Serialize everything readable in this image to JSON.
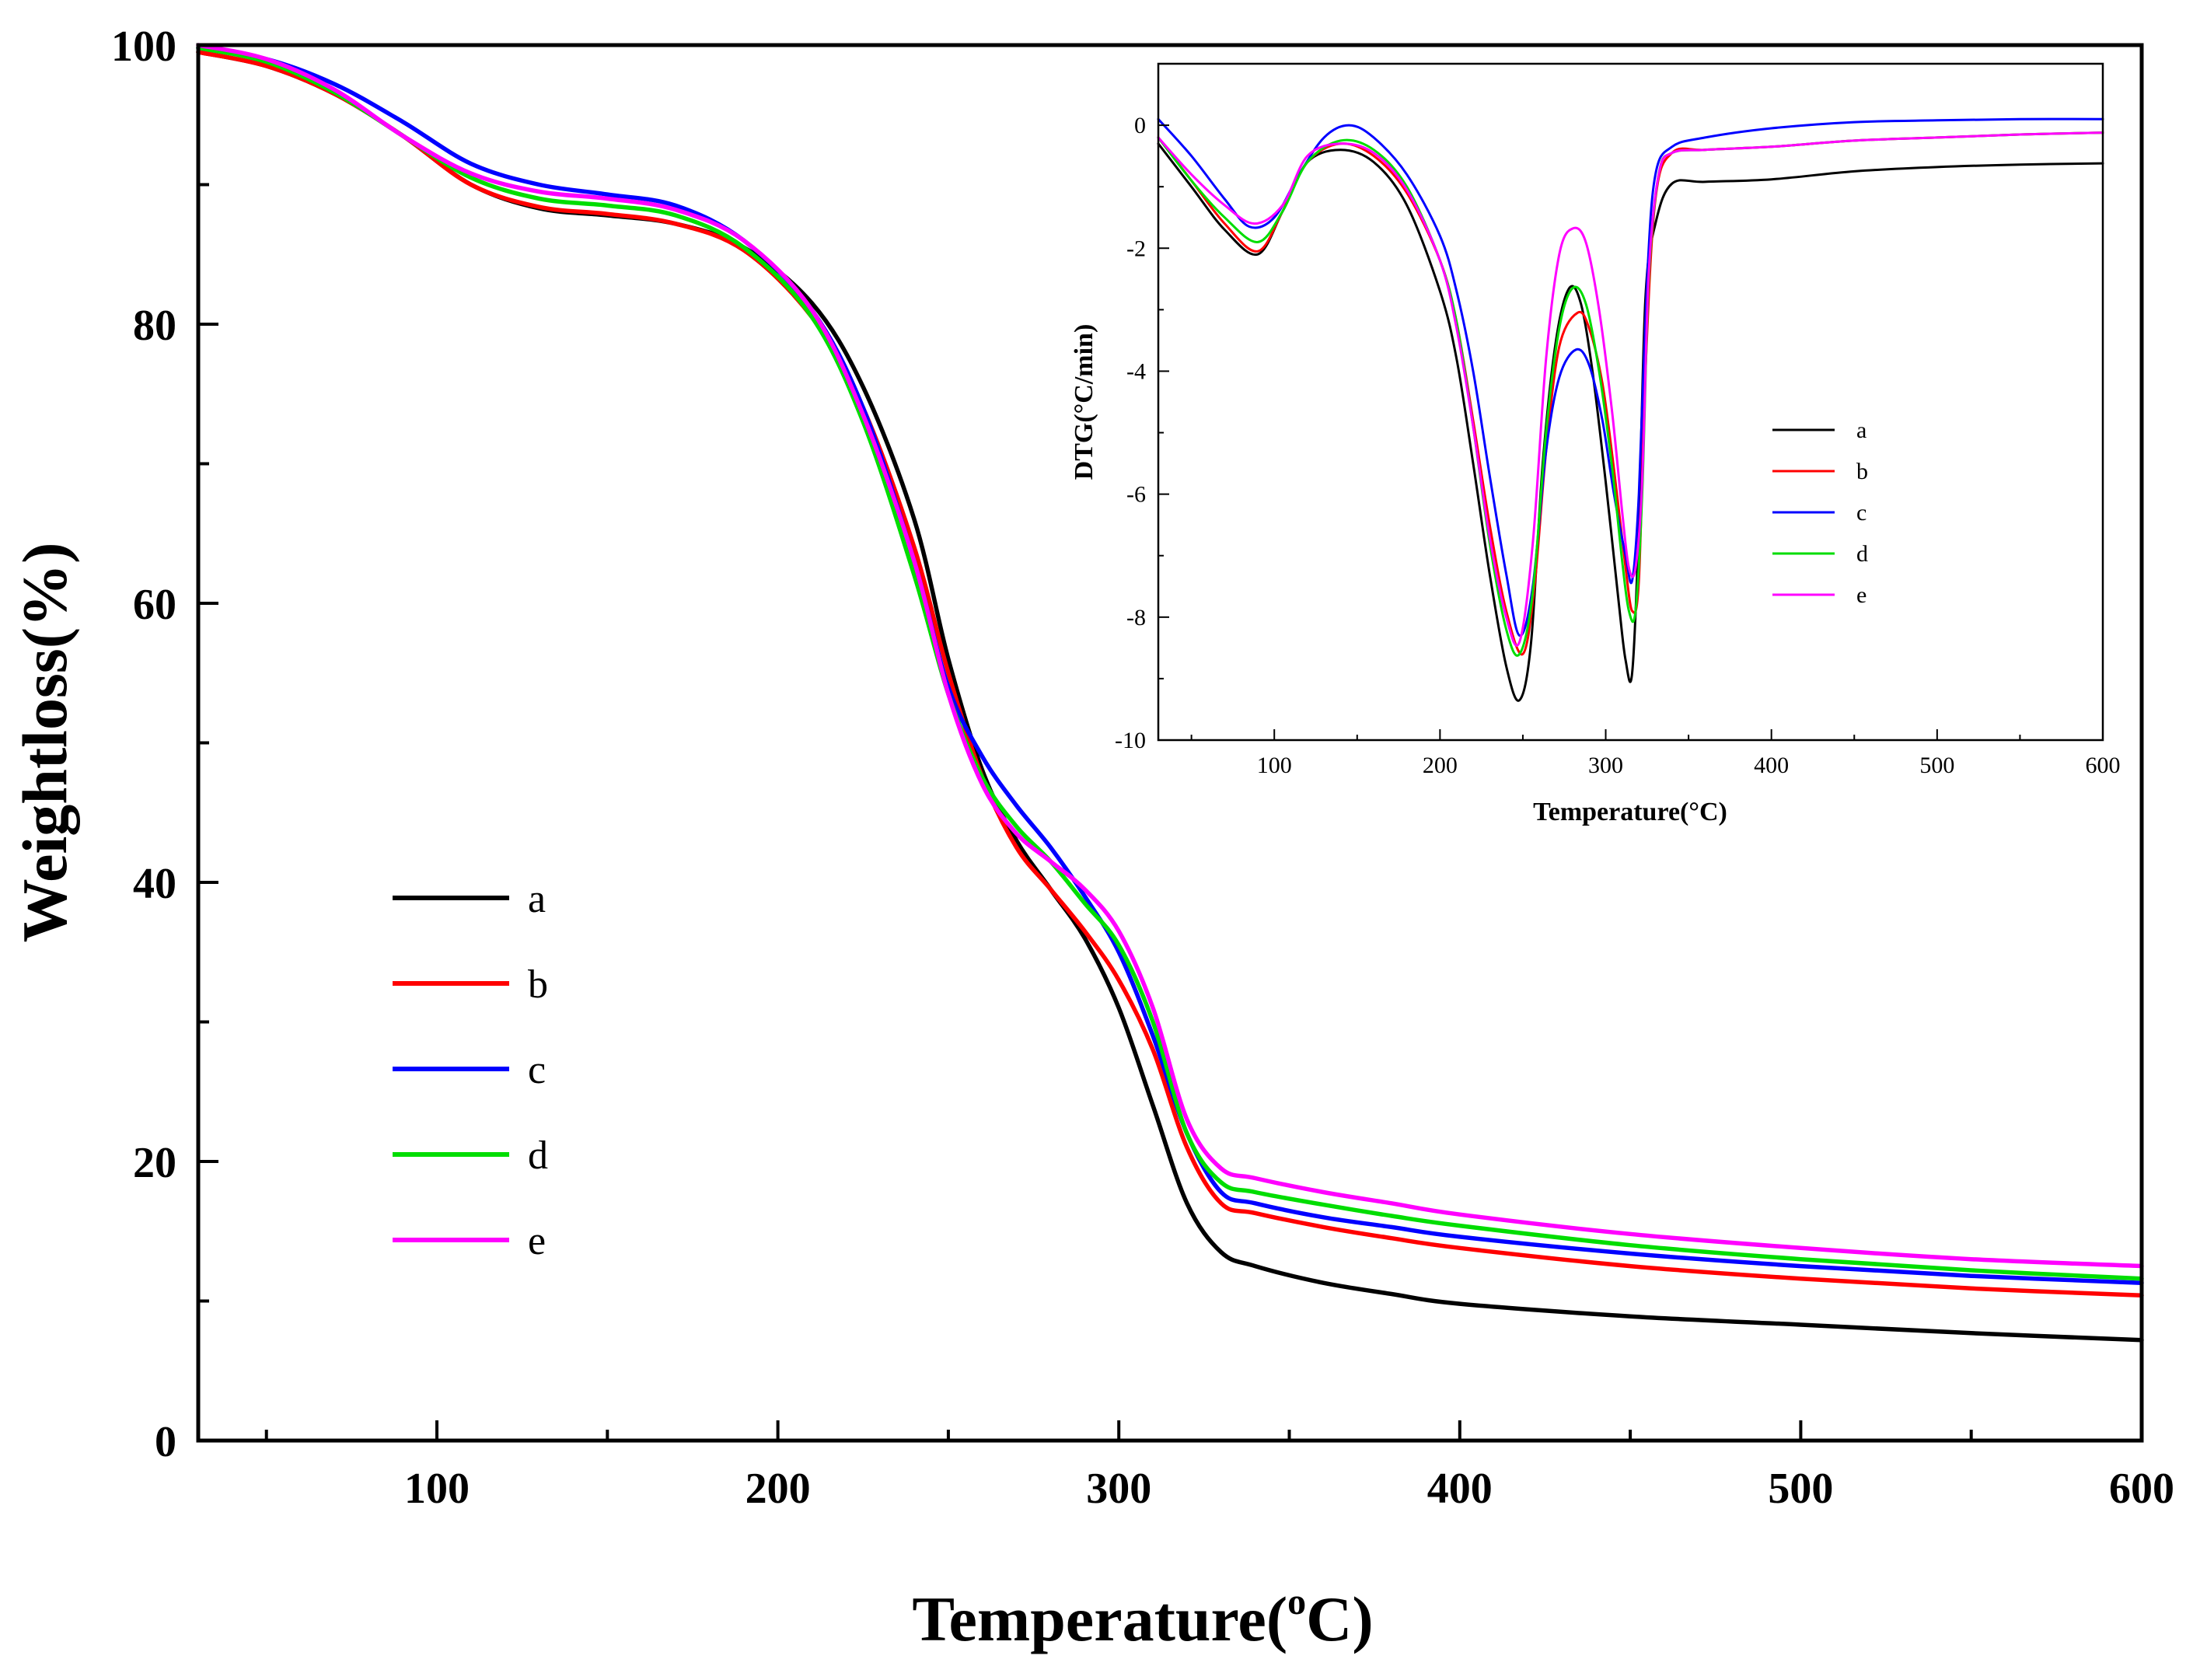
{
  "chart_data": [
    {
      "id": "main",
      "type": "line",
      "title": "",
      "xlabel": "Temperature(",
      "xlabel_sup": "o",
      "xlabel_tail": "C)",
      "ylabel": "Weightloss(%)",
      "xlim": [
        30,
        600
      ],
      "ylim": [
        0,
        100
      ],
      "xticks": [
        100,
        200,
        300,
        400,
        500,
        600
      ],
      "yticks": [
        0,
        20,
        40,
        60,
        80,
        100
      ],
      "grid": false,
      "legend_position": "center-left",
      "series": [
        {
          "name": "a",
          "color": "#000000",
          "x": [
            30,
            50,
            70,
            90,
            110,
            130,
            150,
            170,
            190,
            210,
            225,
            240,
            250,
            260,
            270,
            280,
            290,
            300,
            310,
            320,
            330,
            340,
            360,
            380,
            400,
            450,
            500,
            550,
            600
          ],
          "y": [
            99.5,
            98.5,
            96.5,
            93.5,
            90,
            88.3,
            87.8,
            87.2,
            85.5,
            81.5,
            75.5,
            66,
            56,
            48,
            43,
            39.5,
            36,
            31,
            24,
            17,
            13.5,
            12.5,
            11.3,
            10.5,
            9.8,
            8.9,
            8.3,
            7.7,
            7.2
          ]
        },
        {
          "name": "b",
          "color": "#ff0000",
          "x": [
            30,
            50,
            70,
            90,
            110,
            130,
            150,
            170,
            190,
            210,
            225,
            240,
            250,
            260,
            270,
            280,
            290,
            300,
            310,
            320,
            330,
            340,
            360,
            380,
            400,
            450,
            500,
            550,
            600
          ],
          "y": [
            99.5,
            98.5,
            96.5,
            93.5,
            90,
            88.4,
            87.9,
            87.2,
            85.3,
            80.5,
            74,
            64,
            55,
            47.5,
            42.5,
            39.5,
            36.5,
            33,
            28,
            21,
            17,
            16.3,
            15.3,
            14.5,
            13.8,
            12.5,
            11.6,
            10.9,
            10.4
          ]
        },
        {
          "name": "c",
          "color": "#0000ff",
          "x": [
            30,
            50,
            70,
            90,
            110,
            130,
            150,
            170,
            190,
            210,
            225,
            240,
            250,
            260,
            270,
            280,
            290,
            300,
            310,
            320,
            330,
            340,
            360,
            380,
            400,
            450,
            500,
            550,
            600
          ],
          "y": [
            99.8,
            99,
            97.2,
            94.5,
            91.5,
            90,
            89.3,
            88.5,
            86,
            81,
            74,
            63,
            54,
            49,
            45.5,
            42.5,
            39,
            35,
            29,
            22,
            17.8,
            17,
            16,
            15.3,
            14.6,
            13.4,
            12.5,
            11.8,
            11.3
          ]
        },
        {
          "name": "d",
          "color": "#00dd00",
          "x": [
            30,
            50,
            70,
            90,
            110,
            130,
            150,
            170,
            190,
            210,
            225,
            240,
            250,
            260,
            270,
            280,
            290,
            300,
            310,
            320,
            330,
            340,
            360,
            380,
            400,
            450,
            500,
            550,
            600
          ],
          "y": [
            99.8,
            98.8,
            96.6,
            93.5,
            90.5,
            89,
            88.5,
            87.8,
            85.5,
            80.5,
            73,
            62,
            53.5,
            47.5,
            44,
            41.5,
            38.5,
            35.5,
            30,
            22,
            18.5,
            17.8,
            16.9,
            16.1,
            15.4,
            14,
            13,
            12.2,
            11.6
          ]
        },
        {
          "name": "e",
          "color": "#ff00ff",
          "x": [
            30,
            50,
            70,
            90,
            110,
            130,
            150,
            170,
            190,
            210,
            225,
            240,
            250,
            260,
            270,
            280,
            290,
            300,
            310,
            320,
            330,
            340,
            360,
            380,
            400,
            450,
            500,
            550,
            600
          ],
          "y": [
            100,
            99,
            96.8,
            93.5,
            90.8,
            89.5,
            89,
            88.2,
            86,
            81,
            73.5,
            63,
            53.5,
            47,
            43.5,
            41.5,
            39.5,
            36.5,
            31,
            23,
            19.5,
            18.8,
            17.8,
            17,
            16.2,
            14.8,
            13.8,
            13,
            12.5
          ]
        }
      ]
    },
    {
      "id": "inset",
      "type": "line",
      "title": "",
      "xlabel": "Temperature(°C)",
      "ylabel": "DTG(°C/min)",
      "xlim": [
        30,
        600
      ],
      "ylim": [
        -10,
        1
      ],
      "xticks": [
        100,
        200,
        300,
        400,
        500,
        600
      ],
      "yticks": [
        0,
        -2,
        -4,
        -6,
        -8,
        -10
      ],
      "grid": false,
      "legend_position": "center-right",
      "series": [
        {
          "name": "a",
          "color": "#000000",
          "x": [
            30,
            50,
            70,
            90,
            105,
            120,
            140,
            160,
            180,
            200,
            210,
            220,
            230,
            240,
            248,
            255,
            262,
            270,
            278,
            285,
            292,
            300,
            308,
            312,
            316,
            320,
            324,
            330,
            340,
            360,
            400,
            450,
            500,
            550,
            600
          ],
          "y": [
            -0.3,
            -1,
            -1.7,
            -2.1,
            -1.4,
            -0.6,
            -0.4,
            -0.6,
            -1.3,
            -2.7,
            -3.8,
            -5.5,
            -7.3,
            -8.8,
            -9.35,
            -8.4,
            -5.5,
            -3.5,
            -2.65,
            -2.9,
            -4,
            -5.8,
            -7.8,
            -8.7,
            -8.9,
            -6.5,
            -2.8,
            -1.6,
            -0.95,
            -0.92,
            -0.88,
            -0.75,
            -0.68,
            -0.64,
            -0.62
          ]
        },
        {
          "name": "b",
          "color": "#ff0000",
          "x": [
            30,
            50,
            70,
            90,
            105,
            120,
            140,
            160,
            180,
            200,
            210,
            220,
            230,
            240,
            250,
            257,
            264,
            272,
            283,
            290,
            298,
            305,
            312,
            316,
            320,
            324,
            330,
            340,
            360,
            400,
            450,
            500,
            550,
            600
          ],
          "y": [
            -0.2,
            -0.9,
            -1.6,
            -2.05,
            -1.4,
            -0.6,
            -0.3,
            -0.5,
            -1.1,
            -2.2,
            -3.2,
            -4.8,
            -6.5,
            -7.9,
            -8.6,
            -7.5,
            -5.3,
            -3.6,
            -3.05,
            -3.3,
            -4.2,
            -5.6,
            -7.2,
            -7.9,
            -7.4,
            -4,
            -1.2,
            -0.45,
            -0.4,
            -0.35,
            -0.25,
            -0.2,
            -0.15,
            -0.12
          ]
        },
        {
          "name": "c",
          "color": "#0000ff",
          "x": [
            30,
            50,
            70,
            85,
            100,
            115,
            130,
            145,
            160,
            180,
            200,
            210,
            220,
            230,
            240,
            248,
            256,
            264,
            272,
            282,
            290,
            298,
            305,
            312,
            316,
            320,
            325,
            330,
            340,
            360,
            400,
            450,
            500,
            550,
            600
          ],
          "y": [
            0.1,
            -0.5,
            -1.2,
            -1.65,
            -1.5,
            -0.8,
            -0.2,
            0,
            -0.2,
            -0.8,
            -1.8,
            -2.7,
            -4,
            -5.7,
            -7.3,
            -8.3,
            -7.5,
            -5.3,
            -4.1,
            -3.65,
            -3.9,
            -4.8,
            -6,
            -7,
            -7.4,
            -6,
            -2.5,
            -0.8,
            -0.35,
            -0.2,
            -0.05,
            0.05,
            0.08,
            0.1,
            0.1
          ]
        },
        {
          "name": "d",
          "color": "#00dd00",
          "x": [
            30,
            50,
            70,
            90,
            105,
            120,
            140,
            160,
            180,
            200,
            210,
            220,
            230,
            240,
            248,
            256,
            264,
            272,
            280,
            288,
            296,
            304,
            310,
            314,
            318,
            322,
            326,
            332,
            340,
            360,
            400,
            450,
            500,
            550,
            600
          ],
          "y": [
            -0.2,
            -0.9,
            -1.5,
            -1.9,
            -1.4,
            -0.6,
            -0.25,
            -0.4,
            -1,
            -2.2,
            -3.2,
            -4.9,
            -6.8,
            -8.2,
            -8.6,
            -7.6,
            -5,
            -3.3,
            -2.65,
            -2.9,
            -4,
            -5.6,
            -7.1,
            -7.9,
            -7.9,
            -6,
            -2.5,
            -0.8,
            -0.45,
            -0.4,
            -0.35,
            -0.25,
            -0.2,
            -0.15,
            -0.12
          ]
        },
        {
          "name": "e",
          "color": "#ff00ff",
          "x": [
            30,
            50,
            70,
            88,
            105,
            120,
            140,
            160,
            180,
            200,
            210,
            220,
            230,
            240,
            248,
            256,
            264,
            272,
            280,
            288,
            296,
            304,
            310,
            314,
            318,
            322,
            326,
            332,
            340,
            360,
            400,
            450,
            500,
            550,
            600
          ],
          "y": [
            -0.2,
            -0.8,
            -1.3,
            -1.6,
            -1.3,
            -0.5,
            -0.3,
            -0.45,
            -1.05,
            -2.2,
            -3.3,
            -4.9,
            -6.7,
            -8,
            -8.4,
            -6.8,
            -3.8,
            -2.1,
            -1.68,
            -1.9,
            -3,
            -4.7,
            -6.3,
            -7.2,
            -7.2,
            -5.8,
            -2.4,
            -0.8,
            -0.45,
            -0.4,
            -0.35,
            -0.25,
            -0.2,
            -0.15,
            -0.12
          ]
        }
      ]
    }
  ]
}
